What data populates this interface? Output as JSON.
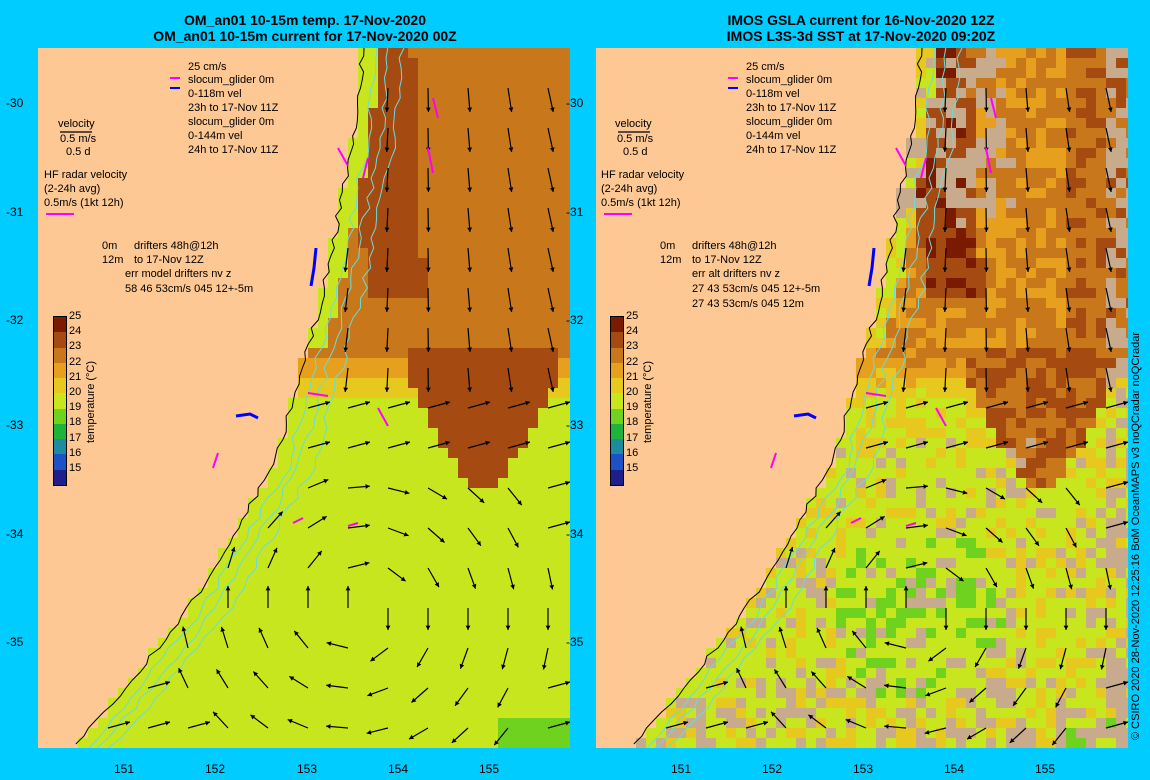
{
  "left_panel": {
    "title_line1": "OM_an01 10-15m temp. 17-Nov-2020",
    "title_line2": "OM_an01 10-15m current for 17-Nov-2020 00Z",
    "legend": {
      "speed": "25 cm/s",
      "glider1": "slocum_glider 0m",
      "glider1_vel": "0-118m vel",
      "glider1_time": "23h to 17-Nov 11Z",
      "glider2": "slocum_glider 0m",
      "glider2_vel": "0-144m vel",
      "glider2_time": "24h to 17-Nov 11Z",
      "velocity": "velocity",
      "velocity_scale": "0.5 m/s",
      "velocity_days": "0.5 d",
      "hf_title": "HF radar velocity",
      "hf_avg": "(2-24h avg)",
      "hf_scale": "0.5m/s (1kt 12h)",
      "drifters_depth": "0m",
      "drifters": "drifters 48h@12h",
      "drifters_depth2": "12m",
      "drifters_time": "to 17-Nov 12Z",
      "err_title": "err model drifters nv z",
      "err_line1": "58 46 53cm/s 045 12+-5m"
    }
  },
  "right_panel": {
    "title_line1": "IMOS GSLA current for 16-Nov-2020 12Z",
    "title_line2": "IMOS L3S-3d SST at 17-Nov-2020 09:20Z",
    "legend": {
      "speed": "25 cm/s",
      "glider1": "slocum_glider 0m",
      "glider1_vel": "0-118m vel",
      "glider1_time": "23h to 17-Nov 11Z",
      "glider2": "slocum_glider 0m",
      "glider2_vel": "0-144m vel",
      "glider2_time": "24h to 17-Nov 11Z",
      "velocity": "velocity",
      "velocity_scale": "0.5 m/s",
      "velocity_days": "0.5 d",
      "hf_title": "HF radar velocity",
      "hf_avg": "(2-24h avg)",
      "hf_scale": "0.5m/s (1kt 12h)",
      "drifters_depth": "0m",
      "drifters": "drifters 48h@12h",
      "drifters_depth2": "12m",
      "drifters_time": "to 17-Nov 12Z",
      "err_title": "err alt drifters nv z",
      "err_line1": "27 43 53cm/s 045 12+-5m",
      "err_line2": "27 43 53cm/s 045 12m"
    }
  },
  "axes": {
    "lat_ticks": [
      "-30",
      "-31",
      "-32",
      "-33",
      "-34",
      "-35"
    ],
    "lon_ticks": [
      "151",
      "152",
      "153",
      "154",
      "155"
    ]
  },
  "colorbar": {
    "title": "temperature (°C)",
    "ticks": [
      "25",
      "24",
      "23",
      "22",
      "21",
      "20",
      "19",
      "18",
      "17",
      "16",
      "15"
    ],
    "colors": [
      "#7a1a00",
      "#a54a10",
      "#c8781a",
      "#e6a01e",
      "#e6c81e",
      "#c8e61e",
      "#6ed21e",
      "#1eb43c",
      "#1e8ca0",
      "#1e50c8",
      "#1e1e8c"
    ]
  },
  "credit": "© CSIRO 2020   28-Nov-2020 12:25:16 BoM OceanMAPS v3 noQCradar noQCradar",
  "colors": {
    "background": "#00ccff",
    "land": "#fdc893",
    "no_data": "#c8aa8c",
    "glider": "#0000ff",
    "drifter": "#ff00ff",
    "contour": "#66dddd"
  }
}
